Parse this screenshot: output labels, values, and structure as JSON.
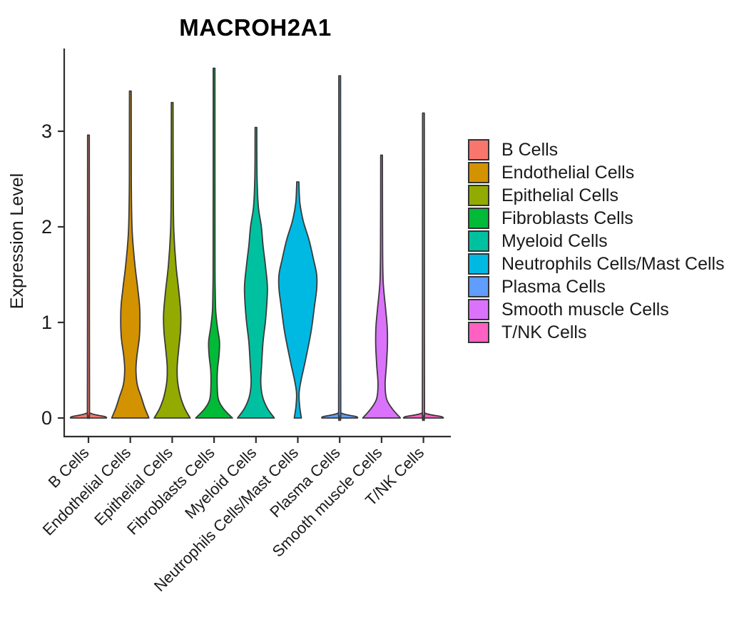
{
  "figure": {
    "background_color": "#ffffff",
    "text_color": "#1a1a1a",
    "axis_color": "#2e2e2e",
    "violin_outline_color": "#3a3a3a"
  },
  "chart_data": {
    "type": "violin",
    "title": "MACROH2A1",
    "ylabel": "Expression Level",
    "y_ticks": [
      0,
      1,
      2,
      3
    ],
    "ylim": [
      0,
      3.85
    ],
    "grid": false,
    "legend_position": "right",
    "categories": [
      "B Cells",
      "Endothelial Cells",
      "Epithelial Cells",
      "Fibroblasts Cells",
      "Myeloid Cells",
      "Neutrophils Cells/Mast Cells",
      "Plasma Cells",
      "Smooth muscle Cells",
      "T/NK Cells"
    ],
    "series": [
      {
        "name": "B Cells",
        "color": "#F8766D",
        "max_expression": 2.96,
        "density_profile": [
          [
            0,
            0.86
          ],
          [
            0.015,
            0.78
          ],
          [
            0.05,
            0.1
          ],
          [
            0.12,
            0.05
          ],
          [
            1.5,
            0.045
          ],
          [
            2.96,
            0.04
          ]
        ]
      },
      {
        "name": "Endothelial Cells",
        "color": "#D39200",
        "max_expression": 3.42,
        "density_profile": [
          [
            0,
            0.89
          ],
          [
            0.1,
            0.7
          ],
          [
            0.22,
            0.52
          ],
          [
            0.35,
            0.33
          ],
          [
            0.5,
            0.27
          ],
          [
            0.64,
            0.31
          ],
          [
            0.84,
            0.43
          ],
          [
            1.02,
            0.46
          ],
          [
            1.18,
            0.44
          ],
          [
            1.38,
            0.34
          ],
          [
            1.62,
            0.21
          ],
          [
            1.95,
            0.09
          ],
          [
            2.35,
            0.05
          ],
          [
            2.9,
            0.045
          ],
          [
            3.42,
            0.04
          ]
        ]
      },
      {
        "name": "Epithelial Cells",
        "color": "#93AA00",
        "max_expression": 3.3,
        "density_profile": [
          [
            0,
            0.86
          ],
          [
            0.1,
            0.6
          ],
          [
            0.22,
            0.4
          ],
          [
            0.38,
            0.26
          ],
          [
            0.54,
            0.24
          ],
          [
            0.72,
            0.31
          ],
          [
            0.92,
            0.4
          ],
          [
            1.1,
            0.41
          ],
          [
            1.32,
            0.32
          ],
          [
            1.6,
            0.18
          ],
          [
            1.95,
            0.08
          ],
          [
            2.35,
            0.05
          ],
          [
            3.3,
            0.04
          ]
        ]
      },
      {
        "name": "Fibroblasts Cells",
        "color": "#00BA38",
        "max_expression": 3.66,
        "density_profile": [
          [
            0,
            0.88
          ],
          [
            0.1,
            0.44
          ],
          [
            0.2,
            0.2
          ],
          [
            0.35,
            0.15
          ],
          [
            0.5,
            0.16
          ],
          [
            0.66,
            0.24
          ],
          [
            0.8,
            0.26
          ],
          [
            0.95,
            0.16
          ],
          [
            1.12,
            0.08
          ],
          [
            1.35,
            0.055
          ],
          [
            1.7,
            0.045
          ],
          [
            3.66,
            0.04
          ]
        ]
      },
      {
        "name": "Myeloid Cells",
        "color": "#00C19F",
        "max_expression": 3.04,
        "density_profile": [
          [
            0,
            0.88
          ],
          [
            0.1,
            0.55
          ],
          [
            0.22,
            0.32
          ],
          [
            0.37,
            0.23
          ],
          [
            0.55,
            0.27
          ],
          [
            0.8,
            0.34
          ],
          [
            1.05,
            0.47
          ],
          [
            1.35,
            0.55
          ],
          [
            1.58,
            0.46
          ],
          [
            1.8,
            0.34
          ],
          [
            2.0,
            0.26
          ],
          [
            2.2,
            0.12
          ],
          [
            2.45,
            0.06
          ],
          [
            2.7,
            0.045
          ],
          [
            3.04,
            0.04
          ]
        ]
      },
      {
        "name": "Neutrophils Cells/Mast Cells",
        "color": "#00B9E3",
        "max_expression": 2.47,
        "density_profile": [
          [
            0,
            0.17
          ],
          [
            0.12,
            0.09
          ],
          [
            0.26,
            0.06
          ],
          [
            0.4,
            0.16
          ],
          [
            0.6,
            0.36
          ],
          [
            0.9,
            0.63
          ],
          [
            1.16,
            0.79
          ],
          [
            1.35,
            0.9
          ],
          [
            1.5,
            0.9
          ],
          [
            1.65,
            0.76
          ],
          [
            1.86,
            0.54
          ],
          [
            2.06,
            0.26
          ],
          [
            2.25,
            0.1
          ],
          [
            2.47,
            0.05
          ]
        ]
      },
      {
        "name": "Plasma Cells",
        "color": "#619CFF",
        "max_expression": 3.58,
        "density_profile": [
          [
            0,
            0.85
          ],
          [
            0.015,
            0.78
          ],
          [
            0.05,
            0.1
          ],
          [
            0.12,
            0.05
          ],
          [
            1.8,
            0.045
          ],
          [
            3.58,
            0.04
          ]
        ]
      },
      {
        "name": "Smooth muscle Cells",
        "color": "#DB72FB",
        "max_expression": 2.75,
        "density_profile": [
          [
            0,
            0.9
          ],
          [
            0.1,
            0.5
          ],
          [
            0.2,
            0.24
          ],
          [
            0.35,
            0.17
          ],
          [
            0.55,
            0.23
          ],
          [
            0.76,
            0.28
          ],
          [
            0.95,
            0.27
          ],
          [
            1.15,
            0.19
          ],
          [
            1.42,
            0.08
          ],
          [
            1.75,
            0.05
          ],
          [
            2.75,
            0.04
          ]
        ]
      },
      {
        "name": "T/NK Cells",
        "color": "#FF61C3",
        "max_expression": 3.19,
        "density_profile": [
          [
            0,
            0.95
          ],
          [
            0.015,
            0.85
          ],
          [
            0.05,
            0.1
          ],
          [
            0.12,
            0.05
          ],
          [
            1.8,
            0.045
          ],
          [
            3.19,
            0.04
          ]
        ]
      }
    ]
  }
}
